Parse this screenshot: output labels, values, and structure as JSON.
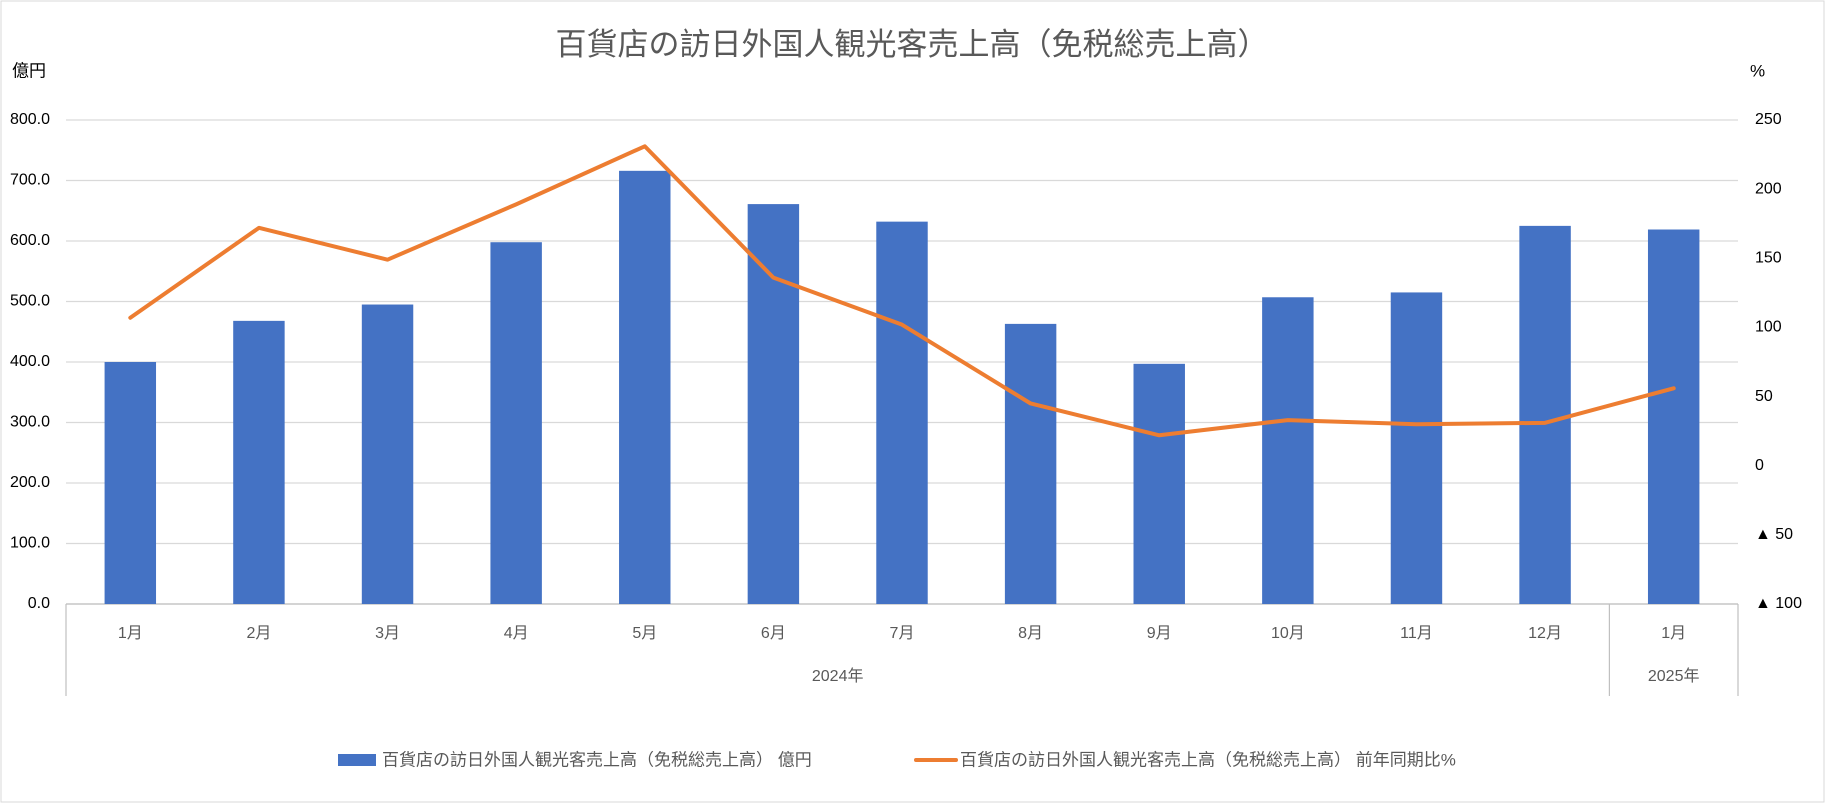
{
  "chart_data": {
    "type": "bar-line",
    "title": "百貨店の訪日外国人観光客売上高（免税総売上高）",
    "y_unit": "億円",
    "y2_unit": "%",
    "groups": [
      {
        "label": "2024年",
        "categories": [
          "1月",
          "2月",
          "3月",
          "4月",
          "5月",
          "6月",
          "7月",
          "8月",
          "9月",
          "10月",
          "11月",
          "12月"
        ]
      },
      {
        "label": "2025年",
        "categories": [
          "1月"
        ]
      }
    ],
    "series": [
      {
        "name": "百貨店の訪日外国人観光客売上高（免税総売上高） 億円",
        "type": "bar",
        "color": "#4472c4",
        "values": [
          400,
          468,
          495,
          598,
          716,
          661,
          632,
          463,
          397,
          507,
          515,
          625,
          619
        ]
      },
      {
        "name": "百貨店の訪日外国人観光客売上高（免税総売上高） 前年同期比%",
        "type": "line",
        "axis": "y2",
        "color": "#ed7d31",
        "values": [
          107,
          172,
          149,
          189,
          231,
          136,
          102,
          45,
          22,
          33,
          30,
          31,
          56
        ]
      }
    ],
    "ylim": [
      0,
      800
    ],
    "yticks": [
      {
        "value": 0,
        "label": "0.0"
      },
      {
        "value": 100,
        "label": "100.0"
      },
      {
        "value": 200,
        "label": "200.0"
      },
      {
        "value": 300,
        "label": "300.0"
      },
      {
        "value": 400,
        "label": "400.0"
      },
      {
        "value": 500,
        "label": "500.0"
      },
      {
        "value": 600,
        "label": "600.0"
      },
      {
        "value": 700,
        "label": "700.0"
      },
      {
        "value": 800,
        "label": "800.0"
      }
    ],
    "y2lim": [
      -100,
      250
    ],
    "y2ticks": [
      {
        "value": -100,
        "label": "▲ 100"
      },
      {
        "value": -50,
        "label": "▲ 50"
      },
      0,
      50,
      100,
      150,
      200,
      250
    ],
    "grid": true
  }
}
